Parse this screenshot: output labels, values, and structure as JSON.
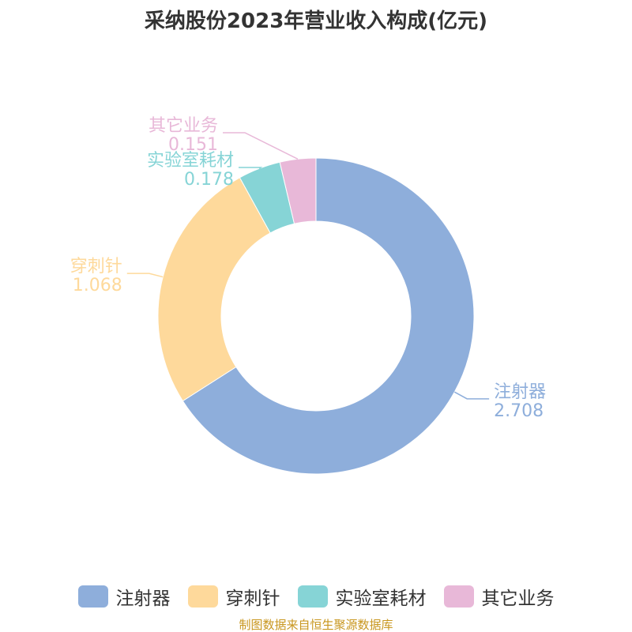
{
  "chart_data": {
    "type": "pie",
    "variant": "donut",
    "title": "采纳股份2023年营业收入构成(亿元)",
    "categories": [
      "注射器",
      "穿刺针",
      "实验室耗材",
      "其它业务"
    ],
    "values": [
      2.708,
      1.068,
      0.178,
      0.151
    ],
    "value_labels": [
      "2.708",
      "1.068",
      "0.178",
      "0.151"
    ],
    "colors": [
      "#8eaedb",
      "#fed99b",
      "#86d4d6",
      "#e8b8d8"
    ],
    "legend_position": "bottom"
  },
  "footer": "制图数据来自恒生聚源数据库"
}
